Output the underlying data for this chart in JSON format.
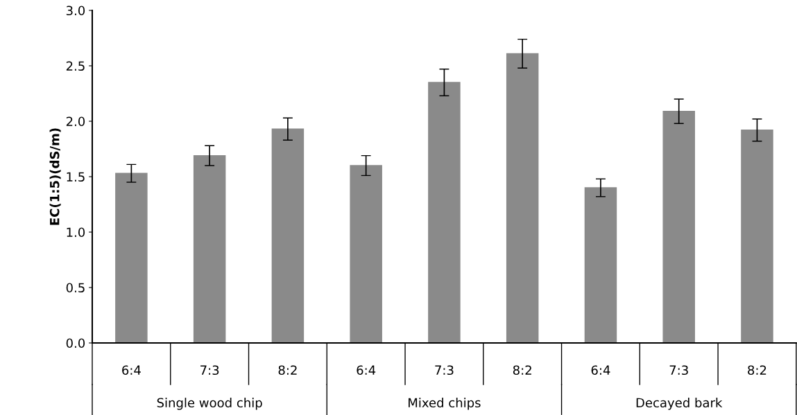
{
  "chart_data": {
    "type": "bar",
    "ylabel": "EC(1:5)(dS/m)",
    "categories": [
      "6:4",
      "7:3",
      "8:2",
      "6:4",
      "7:3",
      "8:2",
      "6:4",
      "7:3",
      "8:2"
    ],
    "values": [
      1.53,
      1.69,
      1.93,
      1.6,
      2.35,
      2.61,
      1.4,
      2.09,
      1.92
    ],
    "errors": [
      0.08,
      0.09,
      0.1,
      0.09,
      0.12,
      0.13,
      0.08,
      0.11,
      0.1
    ],
    "color": "#8a8a8a",
    "ylim": [
      0,
      3.0
    ],
    "yticks": [
      {
        "value": 0,
        "label": "0.0"
      },
      {
        "value": 0.5,
        "label": "0.5"
      },
      {
        "value": 1.0,
        "label": "1.0"
      },
      {
        "value": 1.5,
        "label": "1.5"
      },
      {
        "value": 2.0,
        "label": "2.0"
      },
      {
        "value": 2.5,
        "label": "2.5"
      },
      {
        "value": 3.0,
        "label": "3.0"
      }
    ],
    "annotations": [
      "Single wood chip",
      "Mixed chips",
      "Decayed bark"
    ],
    "grid": false,
    "legend": false
  }
}
